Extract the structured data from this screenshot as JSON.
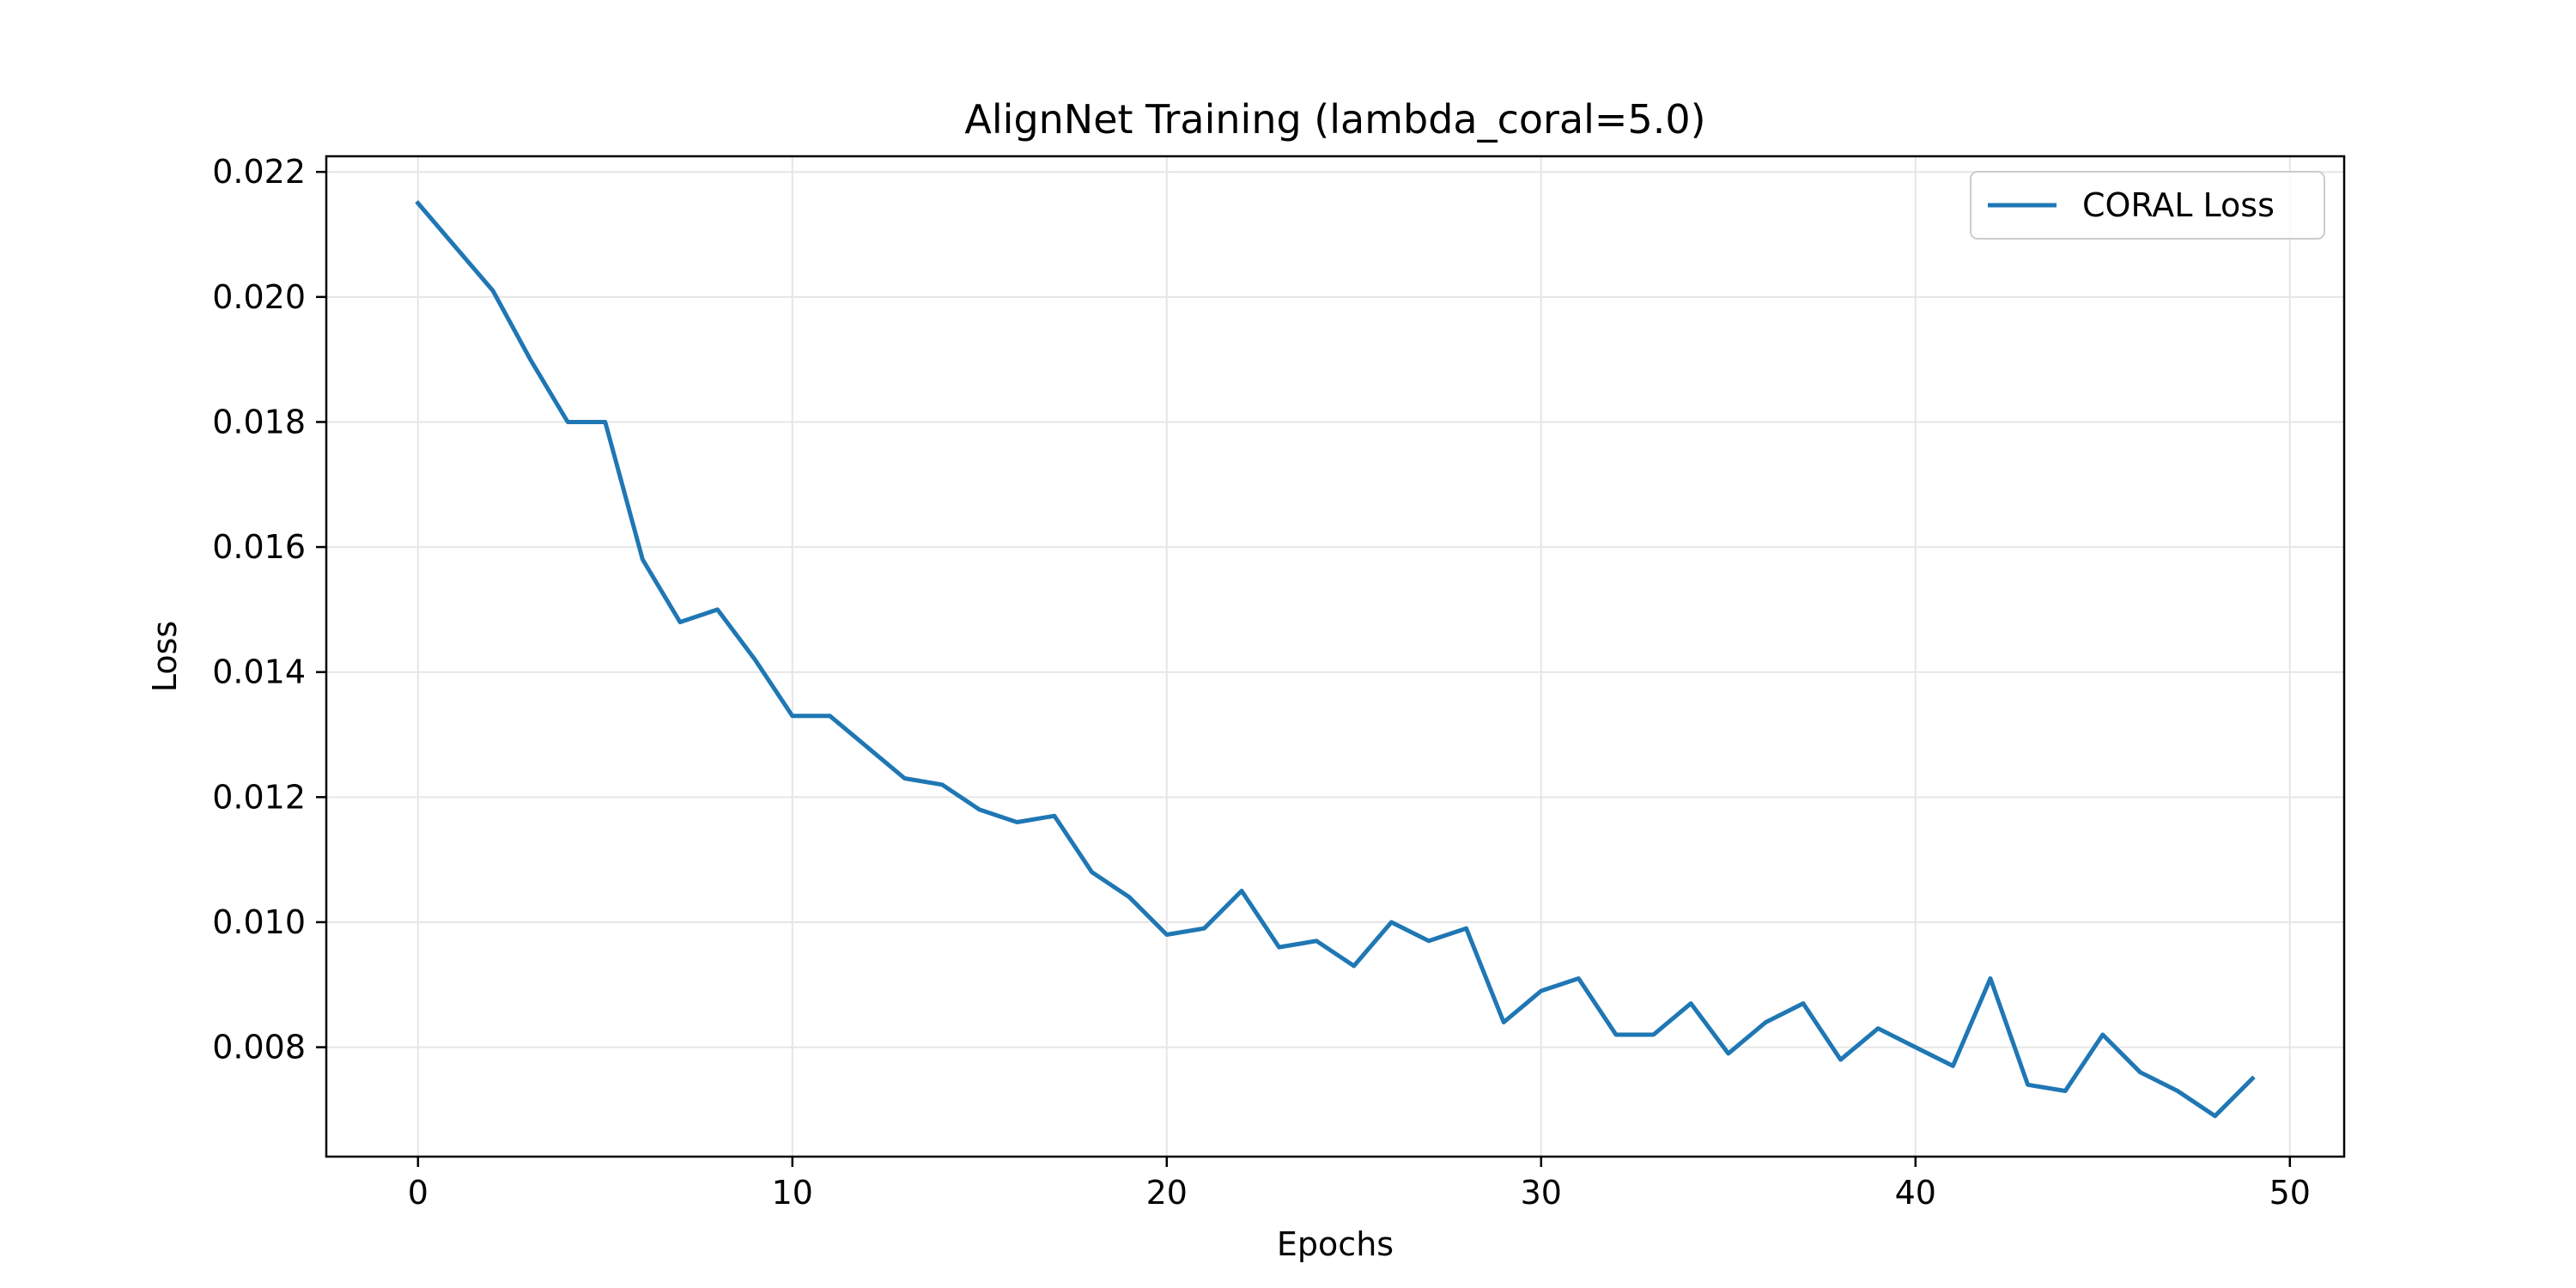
{
  "chart_data": {
    "type": "line",
    "title": "AlignNet Training (lambda_coral=5.0)",
    "xlabel": "Epochs",
    "ylabel": "Loss",
    "xlim": [
      -2.45,
      51.45
    ],
    "ylim": [
      0.00625,
      0.02225
    ],
    "xticks": [
      0,
      10,
      20,
      30,
      40,
      50
    ],
    "yticks": [
      0.008,
      0.01,
      0.012,
      0.014,
      0.016,
      0.018,
      0.02,
      0.022
    ],
    "grid": true,
    "legend": {
      "position": "top-right"
    },
    "colors": {
      "series": "#1f77b4",
      "grid": "#e6e6e6",
      "axes": "#000000"
    },
    "series": [
      {
        "name": "CORAL Loss",
        "x": [
          0,
          1,
          2,
          3,
          4,
          5,
          6,
          7,
          8,
          9,
          10,
          11,
          12,
          13,
          14,
          15,
          16,
          17,
          18,
          19,
          20,
          21,
          22,
          23,
          24,
          25,
          26,
          27,
          28,
          29,
          30,
          31,
          32,
          33,
          34,
          35,
          36,
          37,
          38,
          39,
          40,
          41,
          42,
          43,
          44,
          45,
          46,
          47,
          48,
          49
        ],
        "y": [
          0.0215,
          0.0208,
          0.0201,
          0.019,
          0.018,
          0.018,
          0.0158,
          0.0148,
          0.015,
          0.0142,
          0.0133,
          0.0133,
          0.0128,
          0.0123,
          0.0122,
          0.0118,
          0.0116,
          0.0117,
          0.0108,
          0.0104,
          0.0098,
          0.0099,
          0.0105,
          0.0096,
          0.0097,
          0.0093,
          0.01,
          0.0097,
          0.0099,
          0.0084,
          0.0089,
          0.0091,
          0.0082,
          0.0082,
          0.0087,
          0.0079,
          0.0084,
          0.0087,
          0.0078,
          0.0083,
          0.008,
          0.0077,
          0.0091,
          0.0074,
          0.0073,
          0.0082,
          0.0076,
          0.0073,
          0.0069,
          0.0075
        ]
      }
    ]
  }
}
